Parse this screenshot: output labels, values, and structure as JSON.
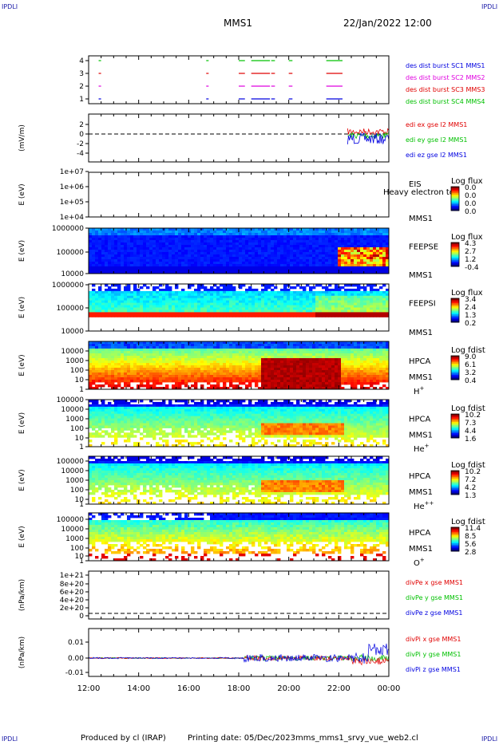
{
  "corners": {
    "tl": "IPDLI",
    "tr": "IPDLI",
    "bl": "IPDLI",
    "br": "IPDLI"
  },
  "header": {
    "mission": "MMS1",
    "datetime": "22/Jan/2022 12:00"
  },
  "footer": {
    "produced": "Produced by cl (IRAP)",
    "printing": "Printing date: 05/Dec/2023",
    "file": "mms_mms1_srvy_vue_web2.cl"
  },
  "colors": {
    "red": "#e00000",
    "green": "#00c000",
    "blue": "#0000e0",
    "magenta": "#e000e0"
  },
  "x_ticks": [
    "12:00",
    "14:00",
    "16:00",
    "18:00",
    "20:00",
    "22:00",
    "00:00"
  ],
  "panels": [
    {
      "id": "burst",
      "ylabel": "",
      "ticks": [
        "4",
        "3",
        "2",
        "1"
      ],
      "legend": [
        {
          "text": "des dist burst SC1 MMS1",
          "color": "blue"
        },
        {
          "text": "des dist burst SC2 MMS2",
          "color": "magenta"
        },
        {
          "text": "des dist burst SC3 MMS3",
          "color": "red"
        },
        {
          "text": "des dist burst SC4 MMS4",
          "color": "green"
        }
      ]
    },
    {
      "id": "edi",
      "ylabel": "(mV/m)",
      "ticks": [
        "2",
        "0",
        "-2",
        "-4"
      ],
      "legend": [
        {
          "text": "edi ex gse l2 MMS1",
          "color": "red"
        },
        {
          "text": "edi ey gse l2 MMS1",
          "color": "green"
        },
        {
          "text": "edi ez gse l2 MMS1",
          "color": "blue"
        }
      ]
    },
    {
      "id": "eis",
      "ylabel": "E (eV)",
      "ticks": [
        "1e+07",
        "1e+06",
        "1e+05",
        "1e+04"
      ],
      "right": [
        "EIS",
        "MMS1"
      ],
      "overlay": "Heavy electron to",
      "cbar_title": "Log flux",
      "cbar": [
        "0.0",
        "0.0",
        "0.0",
        "0.0"
      ]
    },
    {
      "id": "feepse",
      "ylabel": "E (eV)",
      "ticks": [
        "1000000",
        "100000",
        "10000"
      ],
      "right": [
        "FEEPSE",
        "MMS1"
      ],
      "cbar_title": "Log flux",
      "cbar": [
        "4.3",
        "2.7",
        "1.2",
        "-0.4"
      ]
    },
    {
      "id": "feepsi",
      "ylabel": "E (eV)",
      "ticks": [
        "1000000",
        "100000",
        "10000"
      ],
      "right": [
        "FEEPSI",
        "MMS1"
      ],
      "cbar_title": "Log flux",
      "cbar": [
        "3.4",
        "2.4",
        "1.3",
        "0.2"
      ]
    },
    {
      "id": "hpca_h",
      "ylabel": "E (eV)",
      "ticks": [
        "10000",
        "1000",
        "100",
        "10",
        "1"
      ],
      "right": [
        "HPCA",
        "MMS1"
      ],
      "species": "H",
      "sup": "+",
      "cbar_title": "Log fdist",
      "cbar": [
        "9.0",
        "6.1",
        "3.2",
        "0.4"
      ]
    },
    {
      "id": "hpca_he",
      "ylabel": "E (eV)",
      "ticks": [
        "100000",
        "10000",
        "1000",
        "100",
        "10",
        "1"
      ],
      "right": [
        "HPCA",
        "MMS1"
      ],
      "species": "He",
      "sup": "+",
      "cbar_title": "Log fdist",
      "cbar": [
        "10.2",
        "7.3",
        "4.4",
        "1.6"
      ]
    },
    {
      "id": "hpca_hepp",
      "ylabel": "E (eV)",
      "ticks": [
        "100000",
        "10000",
        "1000",
        "100",
        "10",
        "1"
      ],
      "right": [
        "HPCA",
        "MMS1"
      ],
      "species": "He",
      "sup": "++",
      "cbar_title": "Log fdist",
      "cbar": [
        "10.2",
        "7.2",
        "4.2",
        "1.3"
      ]
    },
    {
      "id": "hpca_o",
      "ylabel": "E (eV)",
      "ticks": [
        "100000",
        "10000",
        "1000",
        "100",
        "10",
        "1"
      ],
      "right": [
        "HPCA",
        "MMS1"
      ],
      "species": "O",
      "sup": "+",
      "cbar_title": "Log fdist",
      "cbar": [
        "11.4",
        "8.5",
        "5.6",
        "2.8"
      ]
    },
    {
      "id": "divpe",
      "ylabel": "(nPa/km)",
      "ticks": [
        "1e+21",
        "8e+20",
        "6e+20",
        "4e+20",
        "2e+20",
        "0"
      ],
      "legend": [
        {
          "text": "divPe x gse MMS1",
          "color": "red"
        },
        {
          "text": "divPe y gse MMS1",
          "color": "green"
        },
        {
          "text": "divPe z gse MMS1",
          "color": "blue"
        }
      ]
    },
    {
      "id": "divpi",
      "ylabel": "(nPa/km)",
      "ticks": [
        "0.01",
        "0.00",
        "-0.01"
      ],
      "legend": [
        {
          "text": "divPi x gse MMS1",
          "color": "red"
        },
        {
          "text": "divPi y gse MMS1",
          "color": "green"
        },
        {
          "text": "divPi z gse MMS1",
          "color": "blue"
        }
      ]
    }
  ],
  "chart_data": {
    "type": "heatmap",
    "title": "MMS1 22/Jan/2022 12:00",
    "xlabel": "",
    "x_range": [
      "12:00",
      "00:00"
    ],
    "burst_intervals_hours": [
      [
        12.4,
        12.45
      ],
      [
        16.7,
        16.75
      ],
      [
        18.0,
        18.2
      ],
      [
        18.5,
        19.2
      ],
      [
        19.3,
        19.4
      ],
      [
        20.0,
        20.1
      ],
      [
        21.5,
        22.1
      ]
    ],
    "edi_active_from_hour": 22.35,
    "hpca_h_enhancement_hours": [
      18.8,
      22.0
    ],
    "divpi_disturbance_from_hour": 18.2
  }
}
